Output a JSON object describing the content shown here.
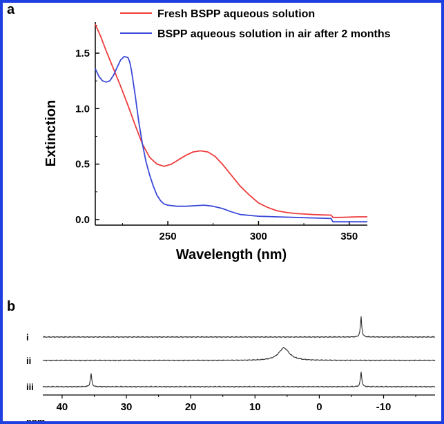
{
  "chart_data": [
    {
      "panel": "a",
      "type": "line",
      "xlabel": "Wavelength (nm)",
      "ylabel": "Extinction",
      "xlim": [
        210,
        360
      ],
      "ylim": [
        -0.05,
        1.78
      ],
      "xticks": [
        250,
        300,
        350
      ],
      "yticks": [
        0.0,
        0.5,
        1.0,
        1.5
      ],
      "ytick_labels": [
        "0.0",
        "0.5",
        "1.0",
        "1.5"
      ],
      "legend": "top-right",
      "grid": false,
      "series": [
        {
          "name": "Fresh BSPP aqueous solution",
          "color": "#ee3b3b",
          "x": [
            210,
            213,
            216,
            220,
            224,
            228,
            232,
            236,
            240,
            244,
            248,
            252,
            256,
            260,
            264,
            268,
            272,
            276,
            280,
            285,
            290,
            295,
            300,
            305,
            310,
            315,
            320,
            325,
            330,
            335,
            340,
            341,
            345,
            350,
            355,
            360
          ],
          "y": [
            1.76,
            1.65,
            1.52,
            1.36,
            1.2,
            1.03,
            0.85,
            0.68,
            0.56,
            0.5,
            0.48,
            0.5,
            0.54,
            0.58,
            0.61,
            0.62,
            0.61,
            0.57,
            0.5,
            0.4,
            0.3,
            0.22,
            0.15,
            0.11,
            0.08,
            0.065,
            0.055,
            0.05,
            0.045,
            0.042,
            0.04,
            0.02,
            0.02,
            0.022,
            0.025,
            0.025
          ]
        },
        {
          "name": "BSPP aqueous solution in air after 2 months",
          "color": "#3a49d8",
          "x": [
            210,
            212,
            214,
            216,
            218,
            220,
            222,
            224,
            226,
            228,
            229,
            230,
            232,
            234,
            236,
            238,
            240,
            242,
            244,
            246,
            248,
            250,
            255,
            260,
            265,
            270,
            275,
            280,
            285,
            290,
            300,
            310,
            320,
            330,
            340,
            341,
            345,
            350,
            355,
            360
          ],
          "y": [
            1.36,
            1.29,
            1.25,
            1.24,
            1.25,
            1.3,
            1.37,
            1.44,
            1.47,
            1.46,
            1.42,
            1.34,
            1.12,
            0.88,
            0.68,
            0.52,
            0.4,
            0.3,
            0.22,
            0.17,
            0.14,
            0.13,
            0.12,
            0.12,
            0.125,
            0.13,
            0.12,
            0.1,
            0.07,
            0.045,
            0.03,
            0.025,
            0.02,
            0.015,
            0.01,
            -0.02,
            -0.02,
            -0.02,
            -0.02,
            -0.02
          ]
        }
      ]
    },
    {
      "panel": "b",
      "type": "line",
      "xlabel": "ppm",
      "xlim": [
        43,
        -18
      ],
      "xticks": [
        40,
        30,
        20,
        10,
        0,
        -10
      ],
      "grid": false,
      "traces": [
        {
          "label": "i",
          "color": "#2a2a2a",
          "peaks": [
            {
              "ppm": -6.5,
              "height": 1.0,
              "width": 0.12
            }
          ]
        },
        {
          "label": "ii",
          "color": "#2a2a2a",
          "peaks": [
            {
              "ppm": 5.5,
              "height": 0.7,
              "width": 1.0
            }
          ]
        },
        {
          "label": "iii",
          "color": "#2a2a2a",
          "peaks": [
            {
              "ppm": 35.5,
              "height": 0.9,
              "width": 0.12
            },
            {
              "ppm": -6.5,
              "height": 1.0,
              "width": 0.12
            }
          ]
        }
      ]
    }
  ],
  "labels": {
    "panel_a": "a",
    "panel_b": "b"
  }
}
